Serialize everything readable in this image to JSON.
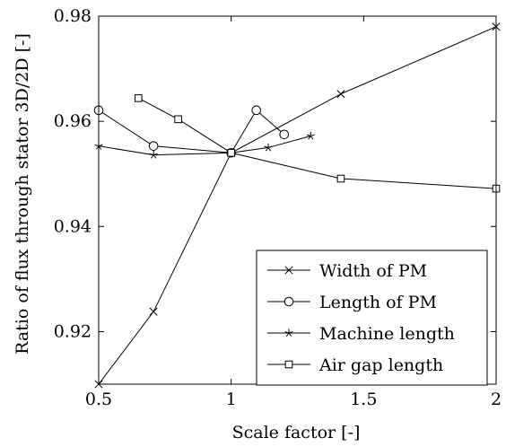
{
  "chart_data": {
    "type": "line",
    "xlabel": "Scale factor [-]",
    "ylabel": "Ratio of flux through stator 3D/2D [-]",
    "xlim": [
      0.5,
      2.0
    ],
    "ylim": [
      0.91,
      0.98
    ],
    "x_ticks": [
      {
        "value": 0.5,
        "label": "0.5"
      },
      {
        "value": 1.0,
        "label": "1"
      },
      {
        "value": 1.5,
        "label": "1.5"
      },
      {
        "value": 2.0,
        "label": "2"
      }
    ],
    "y_ticks": [
      {
        "value": 0.92,
        "label": "0.92"
      },
      {
        "value": 0.94,
        "label": "0.94"
      },
      {
        "value": 0.96,
        "label": "0.96"
      },
      {
        "value": 0.98,
        "label": "0.98"
      }
    ],
    "grid": false,
    "legend_position": "bottom-right",
    "series": [
      {
        "name": "Width of PM",
        "marker": "x",
        "points": [
          {
            "x": 0.5,
            "y": 0.91
          },
          {
            "x": 0.707,
            "y": 0.9238
          },
          {
            "x": 1.0,
            "y": 0.954
          },
          {
            "x": 1.414,
            "y": 0.9652
          },
          {
            "x": 2.0,
            "y": 0.978
          }
        ]
      },
      {
        "name": "Length of PM",
        "marker": "circle",
        "points": [
          {
            "x": 0.5,
            "y": 0.9621
          },
          {
            "x": 0.707,
            "y": 0.9553
          },
          {
            "x": 1.0,
            "y": 0.954
          },
          {
            "x": 1.095,
            "y": 0.9621
          },
          {
            "x": 1.2,
            "y": 0.9575
          }
        ]
      },
      {
        "name": "Machine length",
        "marker": "star",
        "points": [
          {
            "x": 0.5,
            "y": 0.9553
          },
          {
            "x": 0.707,
            "y": 0.9536
          },
          {
            "x": 1.0,
            "y": 0.954
          },
          {
            "x": 1.14,
            "y": 0.955
          },
          {
            "x": 1.3,
            "y": 0.9572
          }
        ]
      },
      {
        "name": "Air gap length",
        "marker": "square",
        "points": [
          {
            "x": 0.65,
            "y": 0.9644
          },
          {
            "x": 0.8,
            "y": 0.9604
          },
          {
            "x": 1.0,
            "y": 0.954
          },
          {
            "x": 1.414,
            "y": 0.9491
          },
          {
            "x": 2.0,
            "y": 0.9472
          }
        ]
      }
    ]
  }
}
